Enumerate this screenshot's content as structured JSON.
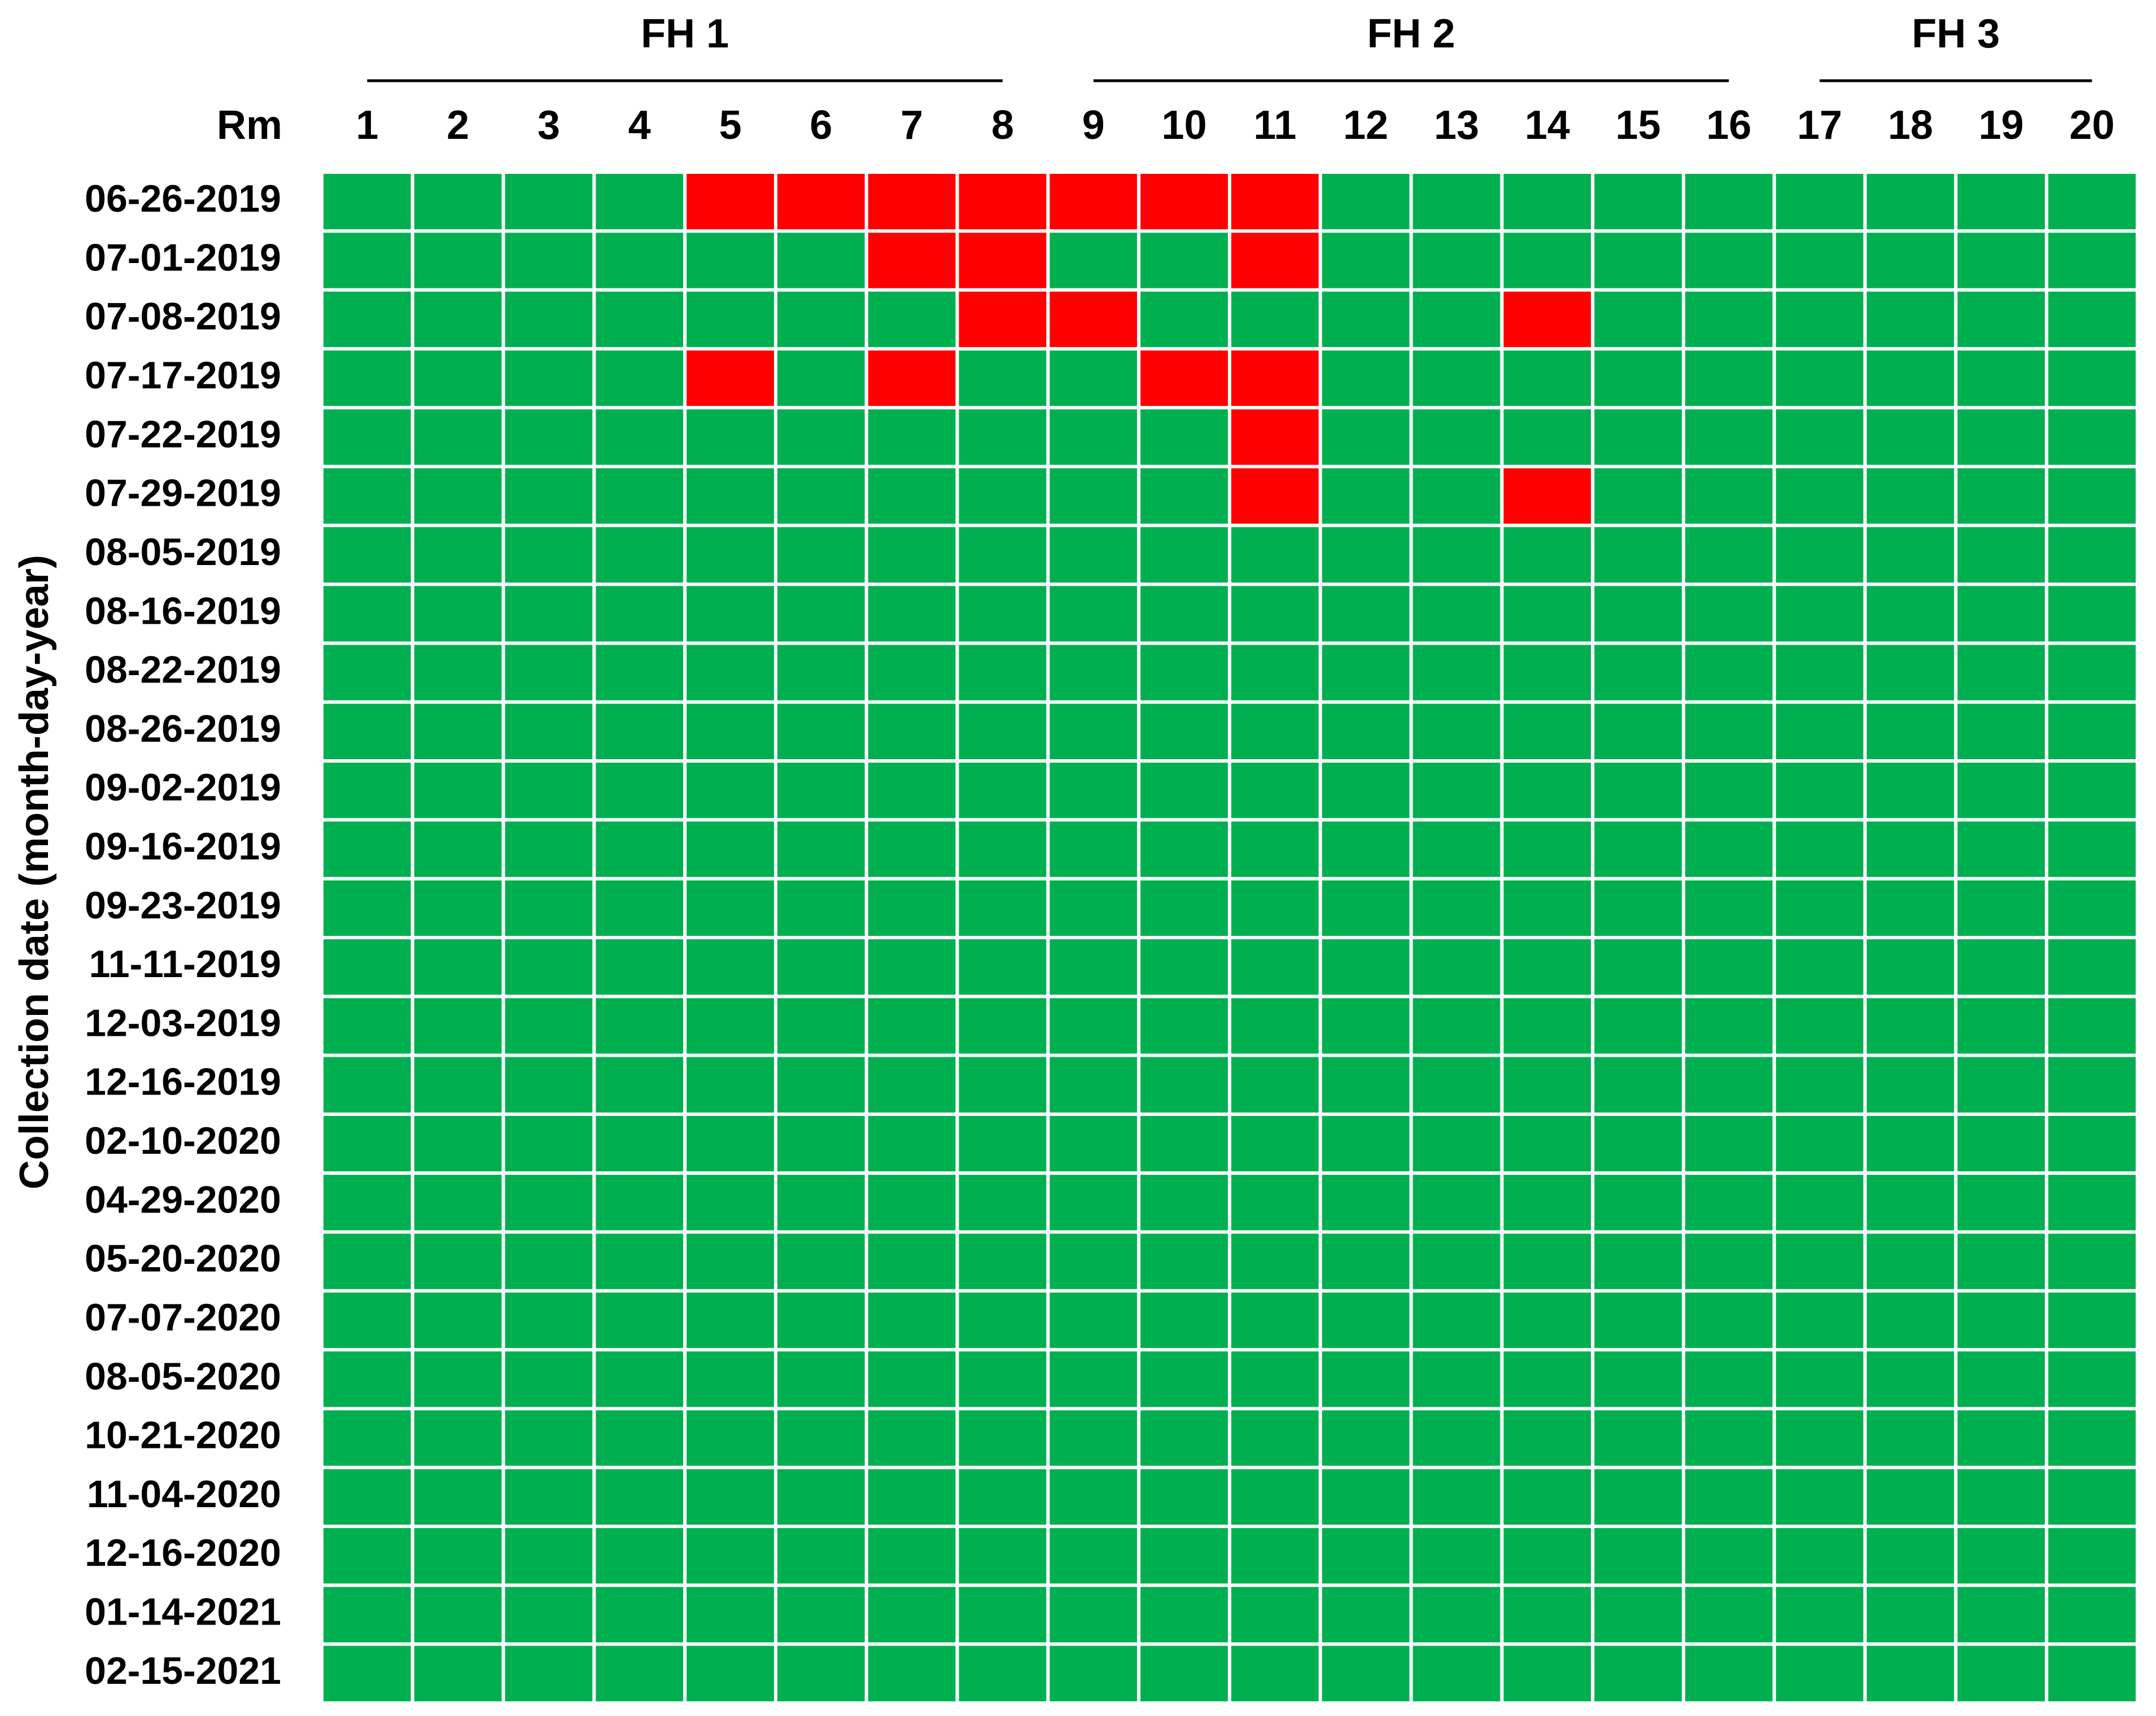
{
  "chart_data": {
    "type": "heatmap",
    "row_axis_label": "Collection date (month-day-year)",
    "column_axis_label": "Rm",
    "columns": [
      "1",
      "2",
      "3",
      "4",
      "5",
      "6",
      "7",
      "8",
      "9",
      "10",
      "11",
      "12",
      "13",
      "14",
      "15",
      "16",
      "17",
      "18",
      "19",
      "20"
    ],
    "groups": [
      {
        "name": "FH 1",
        "first_column": "1",
        "last_column": "8"
      },
      {
        "name": "FH 2",
        "first_column": "9",
        "last_column": "16"
      },
      {
        "name": "FH 3",
        "first_column": "17",
        "last_column": "20"
      }
    ],
    "rows": [
      "06-26-2019",
      "07-01-2019",
      "07-08-2019",
      "07-17-2019",
      "07-22-2019",
      "07-29-2019",
      "08-05-2019",
      "08-16-2019",
      "08-22-2019",
      "08-26-2019",
      "09-02-2019",
      "09-16-2019",
      "09-23-2019",
      "11-11-2019",
      "12-03-2019",
      "12-16-2019",
      "02-10-2020",
      "04-29-2020",
      "05-20-2020",
      "07-07-2020",
      "08-05-2020",
      "10-21-2020",
      "11-04-2020",
      "12-16-2020",
      "01-14-2021",
      "02-15-2021"
    ],
    "values": [
      [
        0,
        0,
        0,
        0,
        1,
        1,
        1,
        1,
        1,
        1,
        1,
        0,
        0,
        0,
        0,
        0,
        0,
        0,
        0,
        0
      ],
      [
        0,
        0,
        0,
        0,
        0,
        0,
        1,
        1,
        0,
        0,
        1,
        0,
        0,
        0,
        0,
        0,
        0,
        0,
        0,
        0
      ],
      [
        0,
        0,
        0,
        0,
        0,
        0,
        0,
        1,
        1,
        0,
        0,
        0,
        0,
        1,
        0,
        0,
        0,
        0,
        0,
        0
      ],
      [
        0,
        0,
        0,
        0,
        1,
        0,
        1,
        0,
        0,
        1,
        1,
        0,
        0,
        0,
        0,
        0,
        0,
        0,
        0,
        0
      ],
      [
        0,
        0,
        0,
        0,
        0,
        0,
        0,
        0,
        0,
        0,
        1,
        0,
        0,
        0,
        0,
        0,
        0,
        0,
        0,
        0
      ],
      [
        0,
        0,
        0,
        0,
        0,
        0,
        0,
        0,
        0,
        0,
        1,
        0,
        0,
        1,
        0,
        0,
        0,
        0,
        0,
        0
      ],
      [
        0,
        0,
        0,
        0,
        0,
        0,
        0,
        0,
        0,
        0,
        0,
        0,
        0,
        0,
        0,
        0,
        0,
        0,
        0,
        0
      ],
      [
        0,
        0,
        0,
        0,
        0,
        0,
        0,
        0,
        0,
        0,
        0,
        0,
        0,
        0,
        0,
        0,
        0,
        0,
        0,
        0
      ],
      [
        0,
        0,
        0,
        0,
        0,
        0,
        0,
        0,
        0,
        0,
        0,
        0,
        0,
        0,
        0,
        0,
        0,
        0,
        0,
        0
      ],
      [
        0,
        0,
        0,
        0,
        0,
        0,
        0,
        0,
        0,
        0,
        0,
        0,
        0,
        0,
        0,
        0,
        0,
        0,
        0,
        0
      ],
      [
        0,
        0,
        0,
        0,
        0,
        0,
        0,
        0,
        0,
        0,
        0,
        0,
        0,
        0,
        0,
        0,
        0,
        0,
        0,
        0
      ],
      [
        0,
        0,
        0,
        0,
        0,
        0,
        0,
        0,
        0,
        0,
        0,
        0,
        0,
        0,
        0,
        0,
        0,
        0,
        0,
        0
      ],
      [
        0,
        0,
        0,
        0,
        0,
        0,
        0,
        0,
        0,
        0,
        0,
        0,
        0,
        0,
        0,
        0,
        0,
        0,
        0,
        0
      ],
      [
        0,
        0,
        0,
        0,
        0,
        0,
        0,
        0,
        0,
        0,
        0,
        0,
        0,
        0,
        0,
        0,
        0,
        0,
        0,
        0
      ],
      [
        0,
        0,
        0,
        0,
        0,
        0,
        0,
        0,
        0,
        0,
        0,
        0,
        0,
        0,
        0,
        0,
        0,
        0,
        0,
        0
      ],
      [
        0,
        0,
        0,
        0,
        0,
        0,
        0,
        0,
        0,
        0,
        0,
        0,
        0,
        0,
        0,
        0,
        0,
        0,
        0,
        0
      ],
      [
        0,
        0,
        0,
        0,
        0,
        0,
        0,
        0,
        0,
        0,
        0,
        0,
        0,
        0,
        0,
        0,
        0,
        0,
        0,
        0
      ],
      [
        0,
        0,
        0,
        0,
        0,
        0,
        0,
        0,
        0,
        0,
        0,
        0,
        0,
        0,
        0,
        0,
        0,
        0,
        0,
        0
      ],
      [
        0,
        0,
        0,
        0,
        0,
        0,
        0,
        0,
        0,
        0,
        0,
        0,
        0,
        0,
        0,
        0,
        0,
        0,
        0,
        0
      ],
      [
        0,
        0,
        0,
        0,
        0,
        0,
        0,
        0,
        0,
        0,
        0,
        0,
        0,
        0,
        0,
        0,
        0,
        0,
        0,
        0
      ],
      [
        0,
        0,
        0,
        0,
        0,
        0,
        0,
        0,
        0,
        0,
        0,
        0,
        0,
        0,
        0,
        0,
        0,
        0,
        0,
        0
      ],
      [
        0,
        0,
        0,
        0,
        0,
        0,
        0,
        0,
        0,
        0,
        0,
        0,
        0,
        0,
        0,
        0,
        0,
        0,
        0,
        0
      ],
      [
        0,
        0,
        0,
        0,
        0,
        0,
        0,
        0,
        0,
        0,
        0,
        0,
        0,
        0,
        0,
        0,
        0,
        0,
        0,
        0
      ],
      [
        0,
        0,
        0,
        0,
        0,
        0,
        0,
        0,
        0,
        0,
        0,
        0,
        0,
        0,
        0,
        0,
        0,
        0,
        0,
        0
      ],
      [
        0,
        0,
        0,
        0,
        0,
        0,
        0,
        0,
        0,
        0,
        0,
        0,
        0,
        0,
        0,
        0,
        0,
        0,
        0,
        0
      ],
      [
        0,
        0,
        0,
        0,
        0,
        0,
        0,
        0,
        0,
        0,
        0,
        0,
        0,
        0,
        0,
        0,
        0,
        0,
        0,
        0
      ]
    ],
    "colors": {
      "0": "#00b050",
      "1": "#ff0000",
      "gridline": "#ffffff"
    },
    "legend": "none"
  }
}
